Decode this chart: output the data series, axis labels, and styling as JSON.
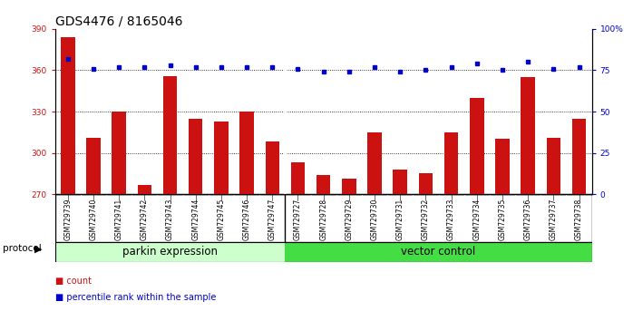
{
  "title": "GDS4476 / 8165046",
  "samples": [
    "GSM729739",
    "GSM729740",
    "GSM729741",
    "GSM729742",
    "GSM729743",
    "GSM729744",
    "GSM729745",
    "GSM729746",
    "GSM729747",
    "GSM729727",
    "GSM729728",
    "GSM729729",
    "GSM729730",
    "GSM729731",
    "GSM729732",
    "GSM729733",
    "GSM729734",
    "GSM729735",
    "GSM729736",
    "GSM729737",
    "GSM729738"
  ],
  "counts": [
    384,
    311,
    330,
    277,
    356,
    325,
    323,
    330,
    308,
    293,
    284,
    281,
    315,
    288,
    285,
    315,
    340,
    310,
    355,
    311,
    325
  ],
  "percentile_ranks": [
    82,
    76,
    77,
    77,
    78,
    77,
    77,
    77,
    77,
    76,
    74,
    74,
    77,
    74,
    75,
    77,
    79,
    75,
    80,
    76,
    77
  ],
  "group1_count": 9,
  "group2_count": 12,
  "group1_label": "parkin expression",
  "group2_label": "vector control",
  "protocol_label": "protocol",
  "y_min": 270,
  "y_max": 390,
  "y_ticks": [
    270,
    300,
    330,
    360,
    390
  ],
  "y2_ticks": [
    0,
    25,
    50,
    75,
    100
  ],
  "bar_color": "#cc1111",
  "dot_color": "#0000cc",
  "group1_color": "#ccffcc",
  "group2_color": "#44dd44",
  "sample_bg": "#c8c8c8",
  "legend_count_color": "#cc1111",
  "legend_pct_color": "#0000cc",
  "title_fontsize": 10,
  "tick_fontsize": 6.5,
  "label_fontsize": 8,
  "group_fontsize": 8.5
}
